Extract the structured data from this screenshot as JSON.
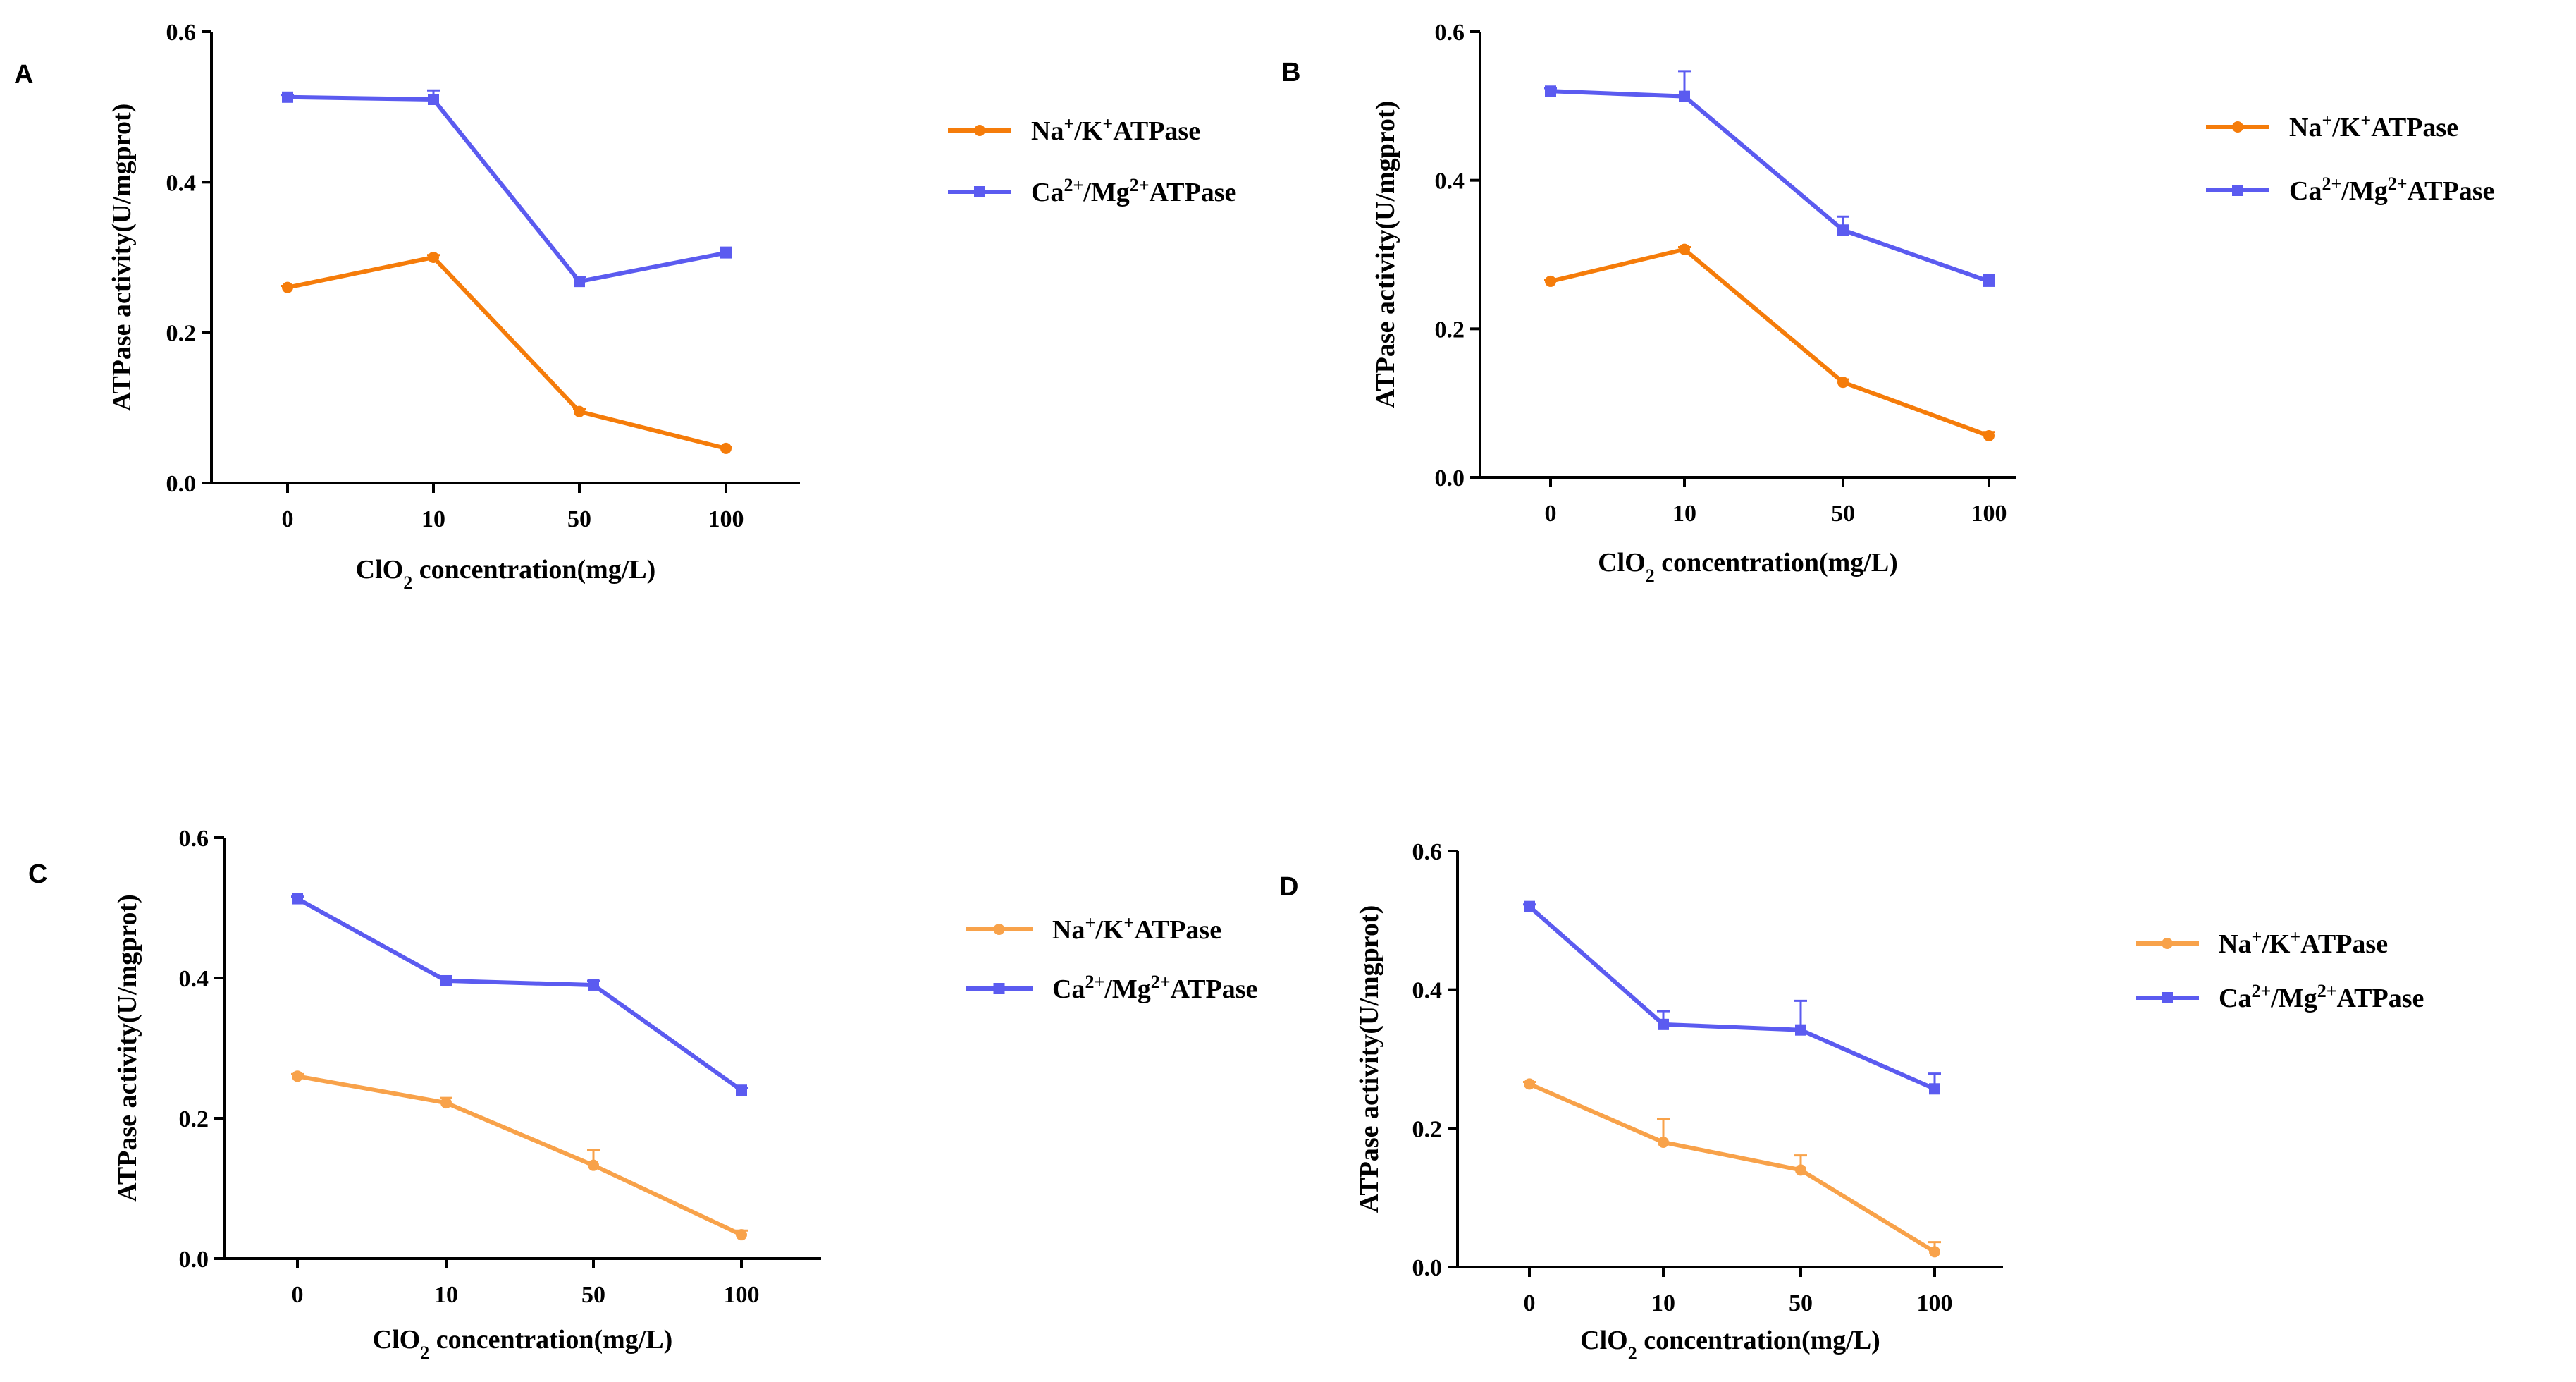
{
  "colors": {
    "na_k_AB": "#F57C0A",
    "na_k_CD": "#F8A24A",
    "ca_mg": "#5B5BF0",
    "axis": "#000000"
  },
  "chart_data": [
    {
      "panel": "A",
      "type": "line",
      "categories": [
        "0",
        "10",
        "50",
        "100"
      ],
      "xlabel": {
        "pre": "ClO",
        "sub": "2",
        "post": " concentration(mg/L)"
      },
      "ylabel": "ATPase activity(U/mgprot)",
      "ylim": [
        0,
        0.6
      ],
      "yticks": [
        "0.0",
        "0.2",
        "0.4",
        "0.6"
      ],
      "series": [
        {
          "name_parts": [
            "Na",
            "+",
            "/K",
            "+",
            "ATPase"
          ],
          "color_key": "na_k_AB",
          "marker": "circle",
          "values": [
            0.26,
            0.3,
            0.095,
            0.046
          ],
          "errors": [
            0.002,
            0.003,
            0.003,
            0.002
          ]
        },
        {
          "name_parts": [
            "Ca",
            "2+",
            "/Mg",
            "2+",
            "ATPase"
          ],
          "color_key": "ca_mg",
          "marker": "square",
          "values": [
            0.513,
            0.51,
            0.268,
            0.306
          ],
          "errors": [
            0.003,
            0.012,
            0.006,
            0.007
          ]
        }
      ]
    },
    {
      "panel": "B",
      "type": "line",
      "categories": [
        "0",
        "10",
        "50",
        "100"
      ],
      "xlabel": {
        "pre": "ClO",
        "sub": "2",
        "post": " concentration(mg/L)"
      },
      "ylabel": "ATPase activity(U/mgprot)",
      "ylim": [
        0,
        0.6
      ],
      "yticks": [
        "0.0",
        "0.2",
        "0.4",
        "0.6"
      ],
      "series": [
        {
          "name_parts": [
            "Na",
            "+",
            "/K",
            "+",
            "ATPase"
          ],
          "color_key": "na_k_AB",
          "marker": "circle",
          "values": [
            0.264,
            0.307,
            0.128,
            0.056
          ],
          "errors": [
            0.002,
            0.003,
            0.004,
            0.005
          ]
        },
        {
          "name_parts": [
            "Ca",
            "2+",
            "/Mg",
            "2+",
            "ATPase"
          ],
          "color_key": "ca_mg",
          "marker": "square",
          "values": [
            0.52,
            0.513,
            0.333,
            0.264
          ],
          "errors": [
            0.004,
            0.034,
            0.018,
            0.009
          ]
        }
      ]
    },
    {
      "panel": "C",
      "type": "line",
      "categories": [
        "0",
        "10",
        "50",
        "100"
      ],
      "xlabel": {
        "pre": "ClO",
        "sub": "2",
        "post": " concentration(mg/L)"
      },
      "ylabel": "ATPase activity(U/mgprot)",
      "ylim": [
        0,
        0.6
      ],
      "yticks": [
        "0.0",
        "0.2",
        "0.4",
        "0.6"
      ],
      "series": [
        {
          "name_parts": [
            "Na",
            "+",
            "/K",
            "+",
            "ATPase"
          ],
          "color_key": "na_k_CD",
          "marker": "circle",
          "values": [
            0.26,
            0.222,
            0.133,
            0.034
          ],
          "errors": [
            0.003,
            0.007,
            0.022,
            0.006
          ]
        },
        {
          "name_parts": [
            "Ca",
            "2+",
            "/Mg",
            "2+",
            "ATPase"
          ],
          "color_key": "ca_mg",
          "marker": "square",
          "values": [
            0.513,
            0.396,
            0.39,
            0.24
          ],
          "errors": [
            0.003,
            0.005,
            0.006,
            0.003
          ]
        }
      ]
    },
    {
      "panel": "D",
      "type": "line",
      "categories": [
        "0",
        "10",
        "50",
        "100"
      ],
      "xlabel": {
        "pre": "ClO",
        "sub": "2",
        "post": " concentration(mg/L)"
      },
      "ylabel": "ATPase activity(U/mgprot)",
      "ylim": [
        0,
        0.6
      ],
      "yticks": [
        "0.0",
        "0.2",
        "0.4",
        "0.6"
      ],
      "series": [
        {
          "name_parts": [
            "Na",
            "+",
            "/K",
            "+",
            "ATPase"
          ],
          "color_key": "na_k_CD",
          "marker": "circle",
          "values": [
            0.264,
            0.18,
            0.14,
            0.022
          ],
          "errors": [
            0.003,
            0.034,
            0.021,
            0.014
          ]
        },
        {
          "name_parts": [
            "Ca",
            "2+",
            "/Mg",
            "2+",
            "ATPase"
          ],
          "color_key": "ca_mg",
          "marker": "square",
          "values": [
            0.52,
            0.35,
            0.342,
            0.257
          ],
          "errors": [
            0.003,
            0.019,
            0.042,
            0.022
          ]
        }
      ]
    }
  ]
}
